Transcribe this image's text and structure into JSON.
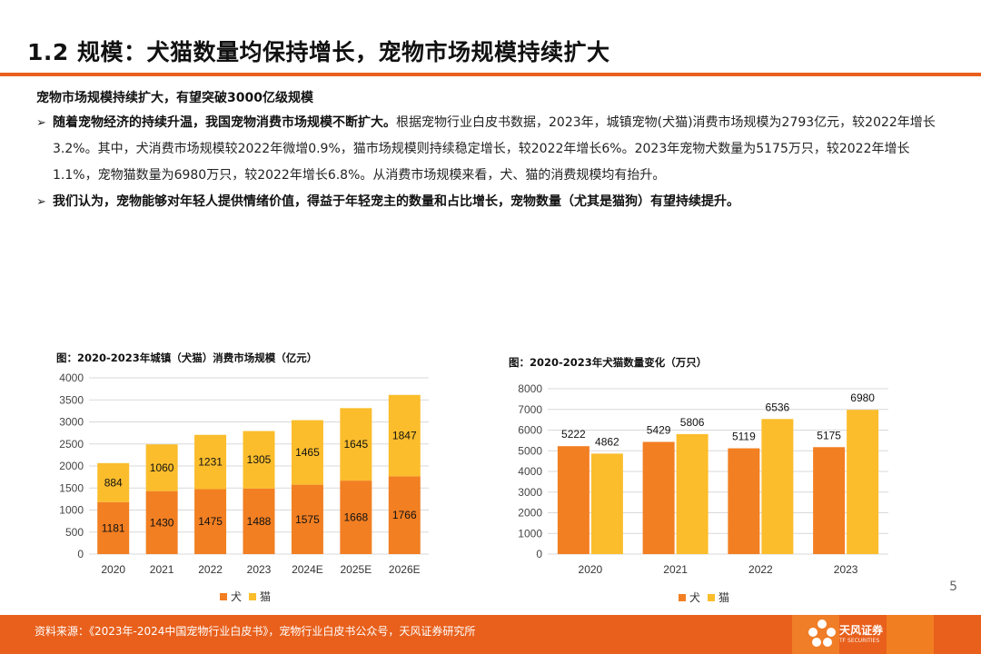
{
  "header": {
    "title": "1.2 规模：犬猫数量均保持增长，宠物市场规模持续扩大"
  },
  "content": {
    "subtitle": "宠物市场规模持续扩大，有望突破3000亿级规模",
    "bullet1_lead": "随着宠物经济的持续升温，我国宠物消费市场规模不断扩大。",
    "bullet1_text": "根据宠物行业白皮书数据，2023年，城镇宠物(犬猫)消费市场规模为2793亿元，较2022年增长3.2%。其中，犬消费市场规模较2022年微增0.9%，猫市场规模则持续稳定增长，较2022年增长6%。2023年宠物犬数量为5175万只，较2022年增长1.1%，宠物猫数量为6980万只，较2022年增长6.8%。从消费市场规模来看，犬、猫的消费规模均有抬升。",
    "bullet2_text": "我们认为，宠物能够对年轻人提供情绪价值，得益于年轻宠主的数量和占比增长，宠物数量（尤其是猫狗）有望持续提升。",
    "bullet_mark": "➢"
  },
  "colors": {
    "accent": "#e8601c",
    "dog": "#f27f22",
    "cat": "#fbbd2c",
    "grid": "#d9d9d9"
  },
  "chart_data": [
    {
      "type": "bar",
      "stacked": true,
      "title": "图：2020-2023年城镇（犬猫）消费市场规模（亿元）",
      "categories": [
        "2020",
        "2021",
        "2022",
        "2023",
        "2024E",
        "2025E",
        "2026E"
      ],
      "series": [
        {
          "name": "犬",
          "values": [
            1181,
            1430,
            1475,
            1488,
            1575,
            1668,
            1766
          ]
        },
        {
          "name": "猫",
          "values": [
            884,
            1060,
            1231,
            1305,
            1465,
            1645,
            1847
          ]
        }
      ],
      "ylim": [
        0,
        4000
      ],
      "yticks": [
        0,
        500,
        1000,
        1500,
        2000,
        2500,
        3000,
        3500,
        4000
      ],
      "legend": "bottom"
    },
    {
      "type": "bar",
      "stacked": false,
      "title": "图：2020-2023年犬猫数量变化（万只）",
      "categories": [
        "2020",
        "2021",
        "2022",
        "2023"
      ],
      "series": [
        {
          "name": "犬",
          "values": [
            5222,
            5429,
            5119,
            5175
          ]
        },
        {
          "name": "猫",
          "values": [
            4862,
            5806,
            6536,
            6980
          ]
        }
      ],
      "ylim": [
        0,
        8000
      ],
      "yticks": [
        0,
        1000,
        2000,
        3000,
        4000,
        5000,
        6000,
        7000,
        8000
      ],
      "legend": "bottom"
    }
  ],
  "footer": {
    "source": "资料来源：《2023年-2024中国宠物行业白皮书》，宠物行业白皮书公众号，天风证券研究所",
    "page_number": "5",
    "logo_name": "天风证券",
    "logo_sub": "TF SECURITIES"
  }
}
